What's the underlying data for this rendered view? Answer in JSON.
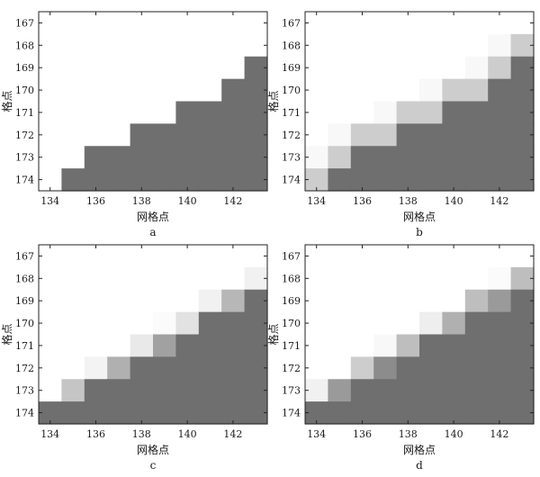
{
  "chart_data": [
    {
      "type": "heatmap",
      "panel_label": "a",
      "xlabel": "网格点",
      "ylabel": "格点",
      "xlim": [
        133.5,
        143.5
      ],
      "ylim": [
        166.5,
        174.5
      ],
      "x_ticks": [
        "134",
        "136",
        "138",
        "140",
        "142"
      ],
      "y_ticks": [
        "167",
        "168",
        "169",
        "170",
        "171",
        "172",
        "173",
        "174"
      ],
      "color_scale": "1 = white ... 0 = dark grey",
      "columns": [
        134,
        135,
        136,
        137,
        138,
        139,
        140,
        141,
        142,
        143
      ],
      "rows": [
        167,
        168,
        169,
        170,
        171,
        172,
        173,
        174
      ],
      "values": [
        [
          1,
          1,
          1,
          1,
          1,
          1,
          1,
          1,
          1,
          1
        ],
        [
          1,
          1,
          1,
          1,
          1,
          1,
          1,
          1,
          1,
          1
        ],
        [
          1,
          1,
          1,
          1,
          1,
          1,
          1,
          1,
          1,
          0
        ],
        [
          1,
          1,
          1,
          1,
          1,
          1,
          1,
          1,
          0,
          0
        ],
        [
          1,
          1,
          1,
          1,
          1,
          1,
          0,
          0,
          0,
          0
        ],
        [
          1,
          1,
          1,
          1,
          0,
          0,
          0,
          0,
          0,
          0
        ],
        [
          1,
          1,
          0,
          0,
          0,
          0,
          0,
          0,
          0,
          0
        ],
        [
          1,
          0,
          0,
          0,
          0,
          0,
          0,
          0,
          0,
          0
        ]
      ]
    },
    {
      "type": "heatmap",
      "panel_label": "b",
      "xlabel": "网格点",
      "ylabel": "格点",
      "xlim": [
        133.5,
        143.5
      ],
      "ylim": [
        166.5,
        174.5
      ],
      "x_ticks": [
        "134",
        "136",
        "138",
        "140",
        "142"
      ],
      "y_ticks": [
        "167",
        "168",
        "169",
        "170",
        "171",
        "172",
        "173",
        "174"
      ],
      "color_scale": "1 = white ... 0 = dark grey",
      "columns": [
        134,
        135,
        136,
        137,
        138,
        139,
        140,
        141,
        142,
        143
      ],
      "rows": [
        167,
        168,
        169,
        170,
        171,
        172,
        173,
        174
      ],
      "values": [
        [
          1,
          1,
          1,
          1,
          1,
          1,
          1,
          1,
          1,
          1
        ],
        [
          1,
          1,
          1,
          1,
          1,
          1,
          1,
          1,
          0.95,
          0.65
        ],
        [
          1,
          1,
          1,
          1,
          1,
          1,
          1,
          0.95,
          0.65,
          0
        ],
        [
          1,
          1,
          1,
          1,
          1,
          0.95,
          0.65,
          0.65,
          0,
          0
        ],
        [
          1,
          1,
          1,
          0.95,
          0.65,
          0.65,
          0,
          0,
          0,
          0
        ],
        [
          1,
          0.95,
          0.65,
          0.65,
          0,
          0,
          0,
          0,
          0,
          0
        ],
        [
          0.95,
          0.65,
          0,
          0,
          0,
          0,
          0,
          0,
          0,
          0
        ],
        [
          0.65,
          0,
          0,
          0,
          0,
          0,
          0,
          0,
          0,
          0
        ]
      ]
    },
    {
      "type": "heatmap",
      "panel_label": "c",
      "xlabel": "网格点",
      "ylabel": "格点",
      "xlim": [
        133.5,
        143.5
      ],
      "ylim": [
        166.5,
        174.5
      ],
      "x_ticks": [
        "134",
        "136",
        "138",
        "140",
        "142"
      ],
      "y_ticks": [
        "167",
        "168",
        "169",
        "170",
        "171",
        "172",
        "173",
        "174"
      ],
      "color_scale": "1 = white ... 0 = dark grey",
      "columns": [
        134,
        135,
        136,
        137,
        138,
        139,
        140,
        141,
        142,
        143
      ],
      "rows": [
        167,
        168,
        169,
        170,
        171,
        172,
        173,
        174
      ],
      "values": [
        [
          1,
          1,
          1,
          1,
          1,
          1,
          1,
          1,
          1,
          1
        ],
        [
          1,
          1,
          1,
          1,
          1,
          1,
          1,
          1,
          1,
          0.9
        ],
        [
          1,
          1,
          1,
          1,
          1,
          1,
          1,
          0.9,
          0.5,
          0
        ],
        [
          1,
          1,
          1,
          1,
          1,
          0.97,
          0.8,
          0,
          0,
          0
        ],
        [
          1,
          1,
          1,
          1,
          0.85,
          0.35,
          0,
          0,
          0,
          0
        ],
        [
          1,
          1,
          0.92,
          0.45,
          0,
          0,
          0,
          0,
          0,
          0
        ],
        [
          1,
          0.6,
          0,
          0,
          0,
          0,
          0,
          0,
          0,
          0
        ],
        [
          0,
          0,
          0,
          0,
          0,
          0,
          0,
          0,
          0,
          0
        ]
      ]
    },
    {
      "type": "heatmap",
      "panel_label": "d",
      "xlabel": "网格点",
      "ylabel": "格点",
      "xlim": [
        133.5,
        143.5
      ],
      "ylim": [
        166.5,
        174.5
      ],
      "x_ticks": [
        "134",
        "136",
        "138",
        "140",
        "142"
      ],
      "y_ticks": [
        "167",
        "168",
        "169",
        "170",
        "171",
        "172",
        "173",
        "174"
      ],
      "color_scale": "1 = white ... 0 = dark grey",
      "columns": [
        134,
        135,
        136,
        137,
        138,
        139,
        140,
        141,
        142,
        143
      ],
      "rows": [
        167,
        168,
        169,
        170,
        171,
        172,
        173,
        174
      ],
      "values": [
        [
          1,
          1,
          1,
          1,
          1,
          1,
          1,
          1,
          1,
          1
        ],
        [
          1,
          1,
          1,
          1,
          1,
          1,
          1,
          1,
          0.97,
          0.55
        ],
        [
          1,
          1,
          1,
          1,
          1,
          1,
          1,
          0.55,
          0.3,
          0
        ],
        [
          1,
          1,
          1,
          1,
          1,
          0.88,
          0.45,
          0,
          0,
          0
        ],
        [
          1,
          1,
          1,
          0.95,
          0.55,
          0,
          0,
          0,
          0,
          0
        ],
        [
          1,
          1,
          0.65,
          0.2,
          0,
          0,
          0,
          0,
          0,
          0
        ],
        [
          0.9,
          0.3,
          0,
          0,
          0,
          0,
          0,
          0,
          0,
          0
        ],
        [
          0,
          0,
          0,
          0,
          0,
          0,
          0,
          0,
          0,
          0
        ]
      ]
    }
  ]
}
